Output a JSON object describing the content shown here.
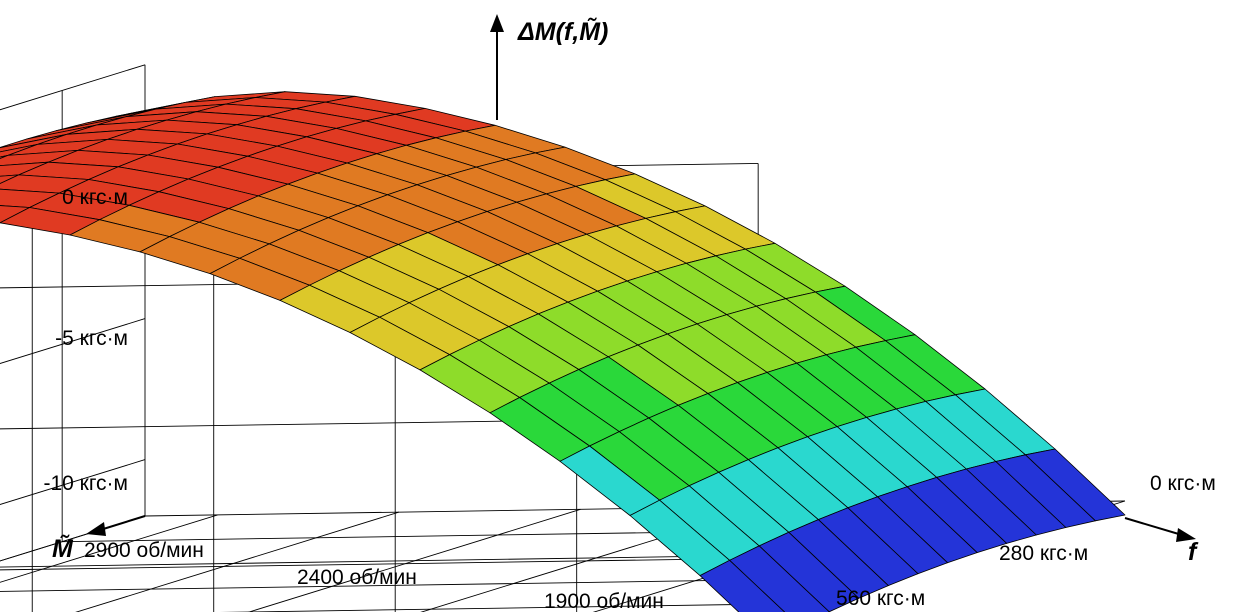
{
  "chart_data": {
    "type": "surface3d",
    "z_axis": {
      "label": "ΔM(f,M̃)",
      "ticks": [
        "0 кгс·м",
        "-5 кгс·м",
        "-10 кгс·м"
      ],
      "tick_values": [
        0,
        -5,
        -10
      ],
      "range": [
        -12,
        4
      ]
    },
    "m_axis": {
      "label": "M̃",
      "ticks": [
        "2900 об/мин",
        "2400 об/мин",
        "1900 об/мин"
      ],
      "tick_values": [
        2900,
        2400,
        1900
      ],
      "range": [
        1650,
        3000
      ]
    },
    "f_axis": {
      "label": "f",
      "ticks": [
        "0 кгс·м",
        "280 кгс·м",
        "560 кгс·м"
      ],
      "tick_values": [
        0,
        280,
        560
      ],
      "range": [
        0,
        620
      ]
    },
    "grid": true,
    "colormap": [
      "#2434d8",
      "#2ad8cf",
      "#2ad83a",
      "#8edc2a",
      "#dcc82a",
      "#e07a22",
      "#e03a22"
    ],
    "surface_f_range": [
      0,
      600
    ],
    "surface_m_range": [
      1650,
      3000
    ],
    "surface_peak": 4,
    "surface_min": -11.8,
    "surface_params": {
      "f_peak": 220,
      "m_ref": 1650,
      "m_curv": 2.2,
      "f_curv": 15.8
    }
  }
}
